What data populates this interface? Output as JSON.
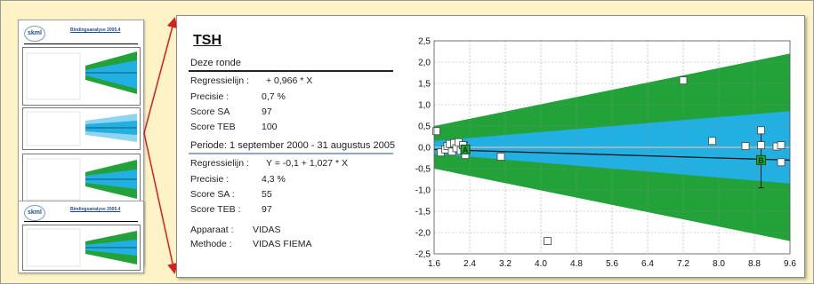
{
  "left_panel": {
    "analyte": "TSH",
    "current_round": {
      "heading": "Deze ronde",
      "rows": [
        {
          "label": "Regressielijn :",
          "value": "+ 0,966 * X"
        },
        {
          "label": "Precisie :",
          "value": "0,7 %"
        },
        {
          "label": "Score SA",
          "value": "97"
        },
        {
          "label": "Score TEB",
          "value": "100"
        }
      ]
    },
    "period": {
      "heading": "Periode: 1 september 2000 - 31 augustus 2005",
      "rows": [
        {
          "label": "Regressielijn :",
          "value": "Y = -0,1 + 1,027 * X"
        },
        {
          "label": "Precisie :",
          "value": "4,3 %"
        },
        {
          "label": "Score SA :",
          "value": "55"
        },
        {
          "label": "Score TEB :",
          "value": "97"
        }
      ]
    },
    "device": {
      "label": "Apparaat :",
      "value": "VIDAS"
    },
    "method": {
      "label": "Methode :",
      "value": "VIDAS FIEMA"
    }
  },
  "thumbnails": {
    "logo_text": "skml",
    "page1_title": "Bindingsanalyse 2005.4",
    "page2_title": "Bindingsanalyse 2005.4"
  },
  "colors": {
    "outer_band": "#23a23a",
    "inner_band": "#22b0e3",
    "background": "#fdf3c6",
    "arrow": "#d42020"
  },
  "chart_data": {
    "type": "scatter",
    "title": "",
    "xlabel": "",
    "ylabel": "",
    "xlim": [
      1.6,
      9.6
    ],
    "ylim": [
      -2.5,
      2.5
    ],
    "x_ticks": [
      "1.6",
      "2.4",
      "3.2",
      "4.0",
      "4.8",
      "5.6",
      "6.4",
      "7.2",
      "8.0",
      "8.8",
      "9.6"
    ],
    "y_ticks": [
      "2,5",
      "2,0",
      "1,5",
      "1,0",
      "0,5",
      "0,0",
      "-0,5",
      "-1,0",
      "-1,5",
      "-2,0",
      "-2,5"
    ],
    "grid": true,
    "bands": {
      "outer": {
        "x": [
          1.6,
          9.6
        ],
        "upper": [
          0.5,
          2.2
        ],
        "lower": [
          -0.5,
          -2.2
        ]
      },
      "inner": {
        "x": [
          1.6,
          9.6
        ],
        "upper": [
          0.15,
          0.85
        ],
        "lower": [
          -0.15,
          -0.85
        ]
      }
    },
    "center_line": {
      "x": [
        1.6,
        9.6
      ],
      "y": [
        0.0,
        0.0
      ]
    },
    "regression_line": {
      "x": [
        1.6,
        9.6
      ],
      "y": [
        -0.05,
        -0.3
      ]
    },
    "points": [
      {
        "x": 1.65,
        "y": 0.38
      },
      {
        "x": 1.75,
        "y": -0.12
      },
      {
        "x": 1.85,
        "y": -0.05
      },
      {
        "x": 1.9,
        "y": 0.03
      },
      {
        "x": 1.95,
        "y": 0.08
      },
      {
        "x": 2.0,
        "y": -0.1
      },
      {
        "x": 2.05,
        "y": 0.1
      },
      {
        "x": 2.1,
        "y": -0.02
      },
      {
        "x": 2.15,
        "y": 0.12
      },
      {
        "x": 2.2,
        "y": -0.08
      },
      {
        "x": 2.25,
        "y": 0.05
      },
      {
        "x": 2.3,
        "y": -0.18
      },
      {
        "x": 3.1,
        "y": -0.22
      },
      {
        "x": 4.15,
        "y": -2.2
      },
      {
        "x": 7.2,
        "y": 1.57
      },
      {
        "x": 7.85,
        "y": 0.15
      },
      {
        "x": 8.6,
        "y": 0.03
      },
      {
        "x": 8.95,
        "y": 0.4
      },
      {
        "x": 8.95,
        "y": 0.05
      },
      {
        "x": 9.3,
        "y": 0.02
      },
      {
        "x": 9.4,
        "y": 0.05
      },
      {
        "x": 9.4,
        "y": -0.35
      }
    ],
    "markers": [
      {
        "label": "A",
        "x": 2.3,
        "y": -0.05
      },
      {
        "label": "B",
        "x": 8.95,
        "y": -0.3
      }
    ],
    "error_bars": [
      {
        "x": 2.3,
        "low": -0.22,
        "high": 0.12
      },
      {
        "x": 8.95,
        "low": -0.95,
        "high": 0.35
      }
    ]
  }
}
